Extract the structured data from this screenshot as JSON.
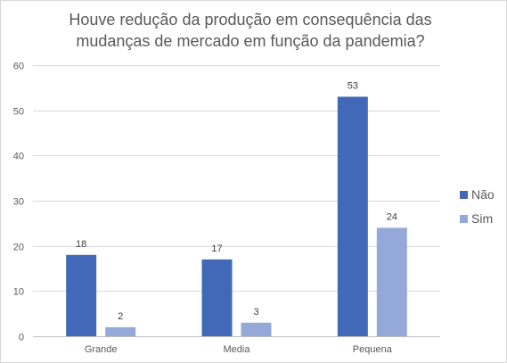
{
  "chart_data": {
    "type": "bar",
    "title": "Houve  redução da produção em consequência das\nmudanças de mercado em função da pandemia?",
    "categories": [
      "Grande",
      "Media",
      "Pequena"
    ],
    "series": [
      {
        "name": "Não",
        "values": [
          18,
          17,
          53
        ],
        "color": "#4169b8"
      },
      {
        "name": "Sim",
        "values": [
          2,
          3,
          24
        ],
        "color": "#94a9d8"
      }
    ],
    "ylim": [
      0,
      60
    ],
    "yticks": [
      0,
      10,
      20,
      30,
      40,
      50,
      60
    ],
    "grid": true,
    "legend_position": "right",
    "data_labels": true
  }
}
